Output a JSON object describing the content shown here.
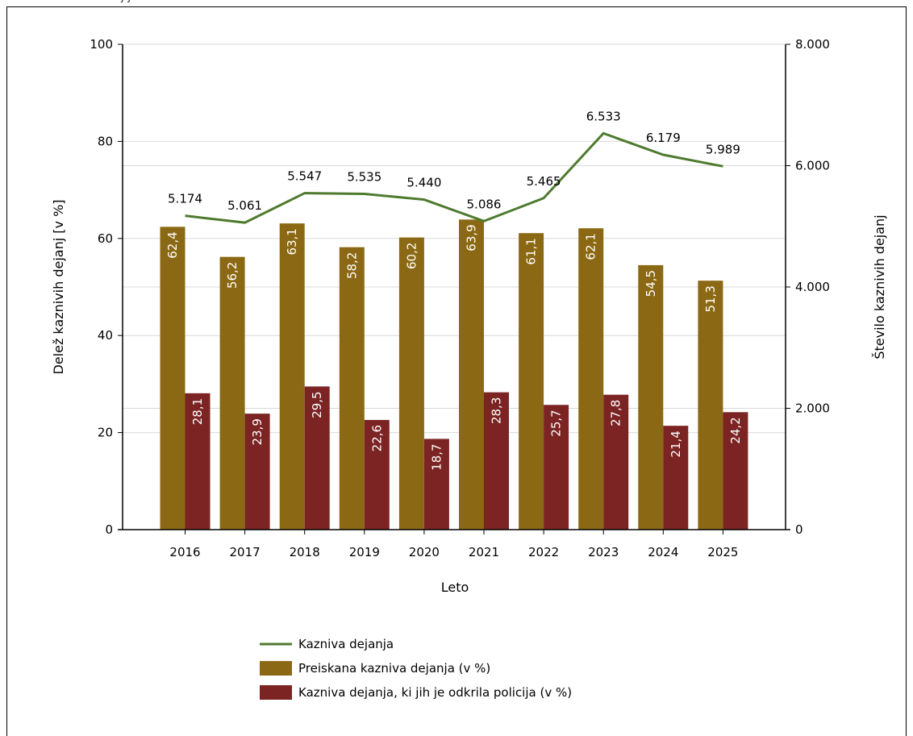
{
  "page": {
    "top_text_fragment": "j j"
  },
  "chart_data": {
    "type": "bar",
    "categories": [
      "2016",
      "2017",
      "2018",
      "2019",
      "2020",
      "2021",
      "2022",
      "2023",
      "2024",
      "2025"
    ],
    "series": [
      {
        "name": "Preiskana kazniva dejanja (v %)",
        "axis": "left",
        "color": "#8B6914",
        "values": [
          62.4,
          56.2,
          63.1,
          58.2,
          60.2,
          63.9,
          61.1,
          62.1,
          54.5,
          51.3
        ],
        "labels": [
          "62,4",
          "56,2",
          "63,1",
          "58,2",
          "60,2",
          "63,9",
          "61,1",
          "62,1",
          "54,5",
          "51,3"
        ]
      },
      {
        "name": "Kazniva dejanja, ki jih je odkrila policija (v %)",
        "axis": "left",
        "color": "#7B2423",
        "values": [
          28.1,
          23.9,
          29.5,
          22.6,
          18.7,
          28.3,
          25.7,
          27.8,
          21.4,
          24.2
        ],
        "labels": [
          "28,1",
          "23,9",
          "29,5",
          "22,6",
          "18,7",
          "28,3",
          "25,7",
          "27,8",
          "21,4",
          "24,2"
        ]
      },
      {
        "name": "Kazniva dejanja",
        "type": "line",
        "axis": "right",
        "color": "#4E7A2E",
        "values": [
          5174,
          5061,
          5547,
          5535,
          5440,
          5086,
          5465,
          6533,
          6179,
          5989
        ],
        "labels": [
          "5.174",
          "5.061",
          "5.547",
          "5.535",
          "5.440",
          "5.086",
          "5.465",
          "6.533",
          "6.179",
          "5.989"
        ]
      }
    ],
    "xlabel": "Leto",
    "ylabel": "Delež kaznivih dejanj [v %]",
    "y2label": "Število kaznivih dejanj",
    "ylim": [
      0,
      100
    ],
    "y2lim": [
      0,
      8000
    ],
    "yticks": [
      "0",
      "20",
      "40",
      "60",
      "80",
      "100"
    ],
    "y2ticks": [
      "0",
      "2.000",
      "4.000",
      "6.000",
      "8.000"
    ],
    "grid": true,
    "legend_position": "bottom"
  }
}
